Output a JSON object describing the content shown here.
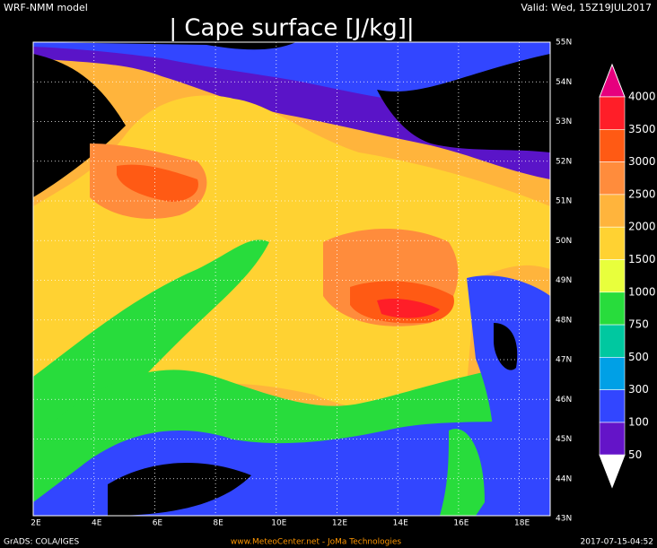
{
  "header": {
    "model": "WRF-NMM model",
    "title": "| Cape surface [J/kg]|",
    "valid": "Valid: Wed, 15Z19JUL2017"
  },
  "map": {
    "lon_labels": [
      "2E",
      "4E",
      "6E",
      "8E",
      "10E",
      "12E",
      "14E",
      "16E",
      "18E"
    ],
    "lat_labels": [
      "55N",
      "54N",
      "53N",
      "52N",
      "51N",
      "50N",
      "49N",
      "48N",
      "47N",
      "46N",
      "45N",
      "44N",
      "43N"
    ]
  },
  "colorbar": {
    "labels": [
      4000,
      3500,
      3000,
      2500,
      2000,
      1500,
      1000,
      750,
      500,
      300,
      100,
      50
    ],
    "colors": [
      "#e6007e",
      "#ff1e28",
      "#ff5a14",
      "#ff8c3c",
      "#ffb43c",
      "#ffd232",
      "#e8ff3c",
      "#28dc3c",
      "#00c8a0",
      "#00a0e6",
      "#3246ff",
      "#6414c8",
      "#ffffff"
    ]
  },
  "footer": {
    "left": "GrADS: COLA/IGES",
    "center": "www.MeteoCenter.net  -  JoMa Technologies",
    "right": "2017-07-15-04:52"
  }
}
